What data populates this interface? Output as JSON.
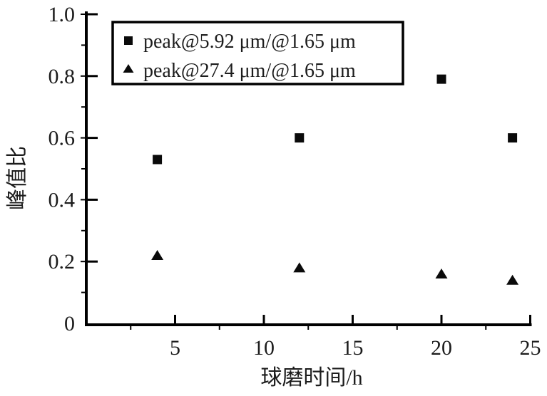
{
  "chart_data": {
    "type": "scatter",
    "title": "",
    "xlabel": "球磨时间/h",
    "ylabel": "峰值比",
    "xlim": [
      0,
      25
    ],
    "ylim": [
      0,
      1.0
    ],
    "x_ticks": [
      5,
      10,
      15,
      20,
      25
    ],
    "x_minor_ticks": [
      2.5,
      7.5,
      12.5,
      17.5,
      22.5
    ],
    "y_ticks": [
      0,
      0.2,
      0.4,
      0.6,
      0.8,
      1.0
    ],
    "y_tick_labels": [
      "0",
      "0.2",
      "0.4",
      "0.6",
      "0.8",
      "1.0"
    ],
    "y_minor_ticks": [
      0.1,
      0.3,
      0.5,
      0.7,
      0.9
    ],
    "grid": false,
    "legend_position": "top-left-inside",
    "x": [
      4,
      12,
      20,
      24
    ],
    "series": [
      {
        "name": "peak@5.92 μm/@1.65 μm",
        "marker": "square",
        "values": [
          0.53,
          0.6,
          0.79,
          0.6
        ]
      },
      {
        "name": "peak@27.4 μm/@1.65 μm",
        "marker": "triangle",
        "values": [
          0.22,
          0.18,
          0.16,
          0.14
        ]
      }
    ]
  },
  "colors": {
    "axis": "#000000",
    "marker": "#0a0a0a",
    "text": "#1c1c1c",
    "background": "#ffffff",
    "legend_border": "#000000"
  }
}
